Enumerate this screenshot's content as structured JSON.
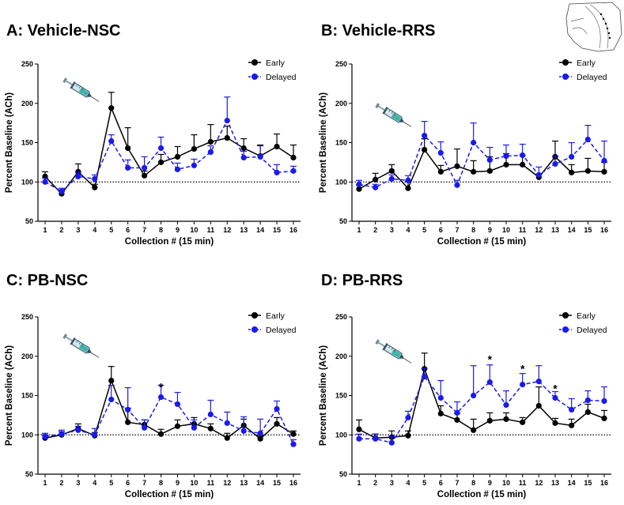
{
  "colors": {
    "early": "#000000",
    "delayed": "#1a1aee"
  },
  "icons": {
    "injection": "syringe-icon",
    "brain": "brain-section-icon"
  },
  "chart_data": [
    {
      "type": "line",
      "title": "A: Vehicle-NSC",
      "xlabel": "Collection # (15 min)",
      "ylabel": "Percent Baseline (ACh)",
      "ylim": [
        50,
        250
      ],
      "yticks": [
        50,
        100,
        150,
        200,
        250
      ],
      "x": [
        1,
        2,
        3,
        4,
        5,
        6,
        7,
        8,
        9,
        10,
        11,
        12,
        13,
        14,
        15,
        16
      ],
      "reference_line": 100,
      "legend": "top-right",
      "annotations": [],
      "series": [
        {
          "name": "Early",
          "style": "solid",
          "values": [
            107,
            85,
            113,
            93,
            194,
            143,
            108,
            125,
            132,
            142,
            151,
            156,
            143,
            133,
            145,
            131
          ],
          "errors": [
            6,
            3,
            10,
            4,
            20,
            26,
            6,
            10,
            13,
            18,
            22,
            15,
            12,
            14,
            16,
            16
          ]
        },
        {
          "name": "Delayed",
          "style": "dashed",
          "values": [
            100,
            88,
            107,
            104,
            152,
            118,
            118,
            143,
            116,
            121,
            138,
            178,
            131,
            132,
            112,
            114
          ],
          "errors": [
            5,
            4,
            5,
            5,
            8,
            10,
            14,
            14,
            8,
            8,
            8,
            30,
            8,
            14,
            10,
            6
          ]
        }
      ]
    },
    {
      "type": "line",
      "title": "B: Vehicle-RRS",
      "xlabel": "Collection # (15 min)",
      "ylabel": "Percent Baseline (ACh)",
      "ylim": [
        50,
        250
      ],
      "yticks": [
        50,
        100,
        150,
        200,
        250
      ],
      "x": [
        1,
        2,
        3,
        4,
        5,
        6,
        7,
        8,
        9,
        10,
        11,
        12,
        13,
        14,
        15,
        16
      ],
      "reference_line": 100,
      "legend": "top-right",
      "annotations": [],
      "series": [
        {
          "name": "Early",
          "style": "solid",
          "values": [
            91,
            103,
            114,
            92,
            141,
            113,
            120,
            113,
            114,
            122,
            122,
            106,
            132,
            112,
            114,
            113
          ],
          "errors": [
            5,
            8,
            8,
            8,
            14,
            8,
            22,
            14,
            18,
            14,
            12,
            4,
            20,
            10,
            16,
            12
          ]
        },
        {
          "name": "Delayed",
          "style": "dashed",
          "values": [
            97,
            93,
            104,
            102,
            159,
            137,
            96,
            150,
            128,
            133,
            134,
            109,
            123,
            132,
            154,
            127
          ],
          "errors": [
            5,
            4,
            5,
            6,
            18,
            14,
            6,
            25,
            16,
            14,
            14,
            10,
            10,
            18,
            18,
            25
          ]
        }
      ]
    },
    {
      "type": "line",
      "title": "C: PB-NSC",
      "xlabel": "Collection # (15 min)",
      "ylabel": "Percent Baseline (ACh)",
      "ylim": [
        50,
        250
      ],
      "yticks": [
        50,
        100,
        150,
        200,
        250
      ],
      "x": [
        1,
        2,
        3,
        4,
        5,
        6,
        7,
        8,
        9,
        10,
        11,
        12,
        13,
        14,
        15,
        16
      ],
      "reference_line": 100,
      "legend": "top-right",
      "annotations": [
        {
          "text": "*",
          "x": 8,
          "y": 162
        }
      ],
      "series": [
        {
          "name": "Early",
          "style": "solid",
          "values": [
            96,
            100,
            108,
            99,
            169,
            116,
            113,
            101,
            111,
            114,
            108,
            96,
            112,
            95,
            114,
            101
          ],
          "errors": [
            4,
            4,
            6,
            4,
            18,
            18,
            6,
            6,
            8,
            8,
            6,
            6,
            8,
            4,
            8,
            4
          ]
        },
        {
          "name": "Delayed",
          "style": "dashed",
          "values": [
            98,
            101,
            106,
            100,
            145,
            132,
            109,
            148,
            139,
            109,
            126,
            115,
            105,
            102,
            133,
            88
          ],
          "errors": [
            4,
            5,
            5,
            8,
            18,
            28,
            10,
            15,
            15,
            10,
            18,
            14,
            18,
            18,
            10,
            6
          ]
        }
      ]
    },
    {
      "type": "line",
      "title": "D: PB-RRS",
      "xlabel": "Collection # (15 min)",
      "ylabel": "Percent Baseline (ACh)",
      "ylim": [
        50,
        250
      ],
      "yticks": [
        50,
        100,
        150,
        200,
        250
      ],
      "x": [
        1,
        2,
        3,
        4,
        5,
        6,
        7,
        8,
        9,
        10,
        11,
        12,
        13,
        14,
        15,
        16
      ],
      "reference_line": 100,
      "legend": "top-right",
      "annotations": [
        {
          "text": "*",
          "x": 9,
          "y": 197
        },
        {
          "text": "*",
          "x": 11,
          "y": 185
        },
        {
          "text": "*",
          "x": 13,
          "y": 160
        }
      ],
      "series": [
        {
          "name": "Early",
          "style": "solid",
          "values": [
            107,
            96,
            97,
            99,
            184,
            127,
            119,
            106,
            118,
            120,
            116,
            137,
            115,
            112,
            129,
            121
          ],
          "errors": [
            12,
            5,
            8,
            6,
            20,
            10,
            8,
            14,
            10,
            8,
            6,
            24,
            6,
            8,
            10,
            10
          ]
        },
        {
          "name": "Delayed",
          "style": "dashed",
          "values": [
            95,
            95,
            90,
            122,
            174,
            147,
            128,
            150,
            167,
            138,
            164,
            168,
            147,
            132,
            144,
            143
          ],
          "errors": [
            6,
            6,
            8,
            8,
            10,
            22,
            14,
            38,
            22,
            18,
            14,
            20,
            8,
            14,
            12,
            18
          ]
        }
      ]
    }
  ]
}
